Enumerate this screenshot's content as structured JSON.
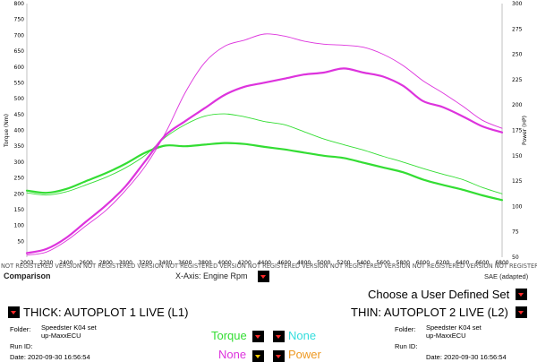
{
  "chart_data": {
    "type": "line",
    "x": [
      2003,
      2200,
      2400,
      2600,
      2800,
      3000,
      3200,
      3400,
      3600,
      3800,
      4000,
      4200,
      4400,
      4600,
      4800,
      5000,
      5200,
      5400,
      5600,
      5800,
      6000,
      6200,
      6400,
      6600,
      6800
    ],
    "x_ticks": [
      "2003",
      "2200",
      "2400",
      "2600",
      "2800",
      "3000",
      "3200",
      "3400",
      "3600",
      "3800",
      "4000",
      "4200",
      "4400",
      "4600",
      "4800",
      "5000",
      "5200",
      "5400",
      "5600",
      "5800",
      "6000",
      "6200",
      "6400",
      "6600",
      "6800"
    ],
    "xlim": [
      2003,
      6800
    ],
    "ylabel_left": "Torque (Nm)",
    "ylim_left": [
      0,
      800
    ],
    "y_ticks_left": [
      50,
      100,
      150,
      200,
      250,
      300,
      350,
      400,
      450,
      500,
      550,
      600,
      650,
      700,
      750,
      800
    ],
    "ylabel_right": "Power (HP)",
    "ylim_right": [
      50,
      300
    ],
    "y_ticks_right": [
      50,
      75,
      100,
      125,
      150,
      175,
      200,
      225,
      250,
      275,
      300
    ],
    "series": [
      {
        "axis": "left",
        "width": "thick",
        "color": "#33dd33",
        "values": [
          210,
          203,
          215,
          240,
          265,
          295,
          330,
          352,
          350,
          355,
          360,
          357,
          348,
          340,
          330,
          320,
          313,
          298,
          283,
          268,
          245,
          228,
          213,
          195,
          180
        ]
      },
      {
        "axis": "left",
        "width": "thin",
        "color": "#33dd33",
        "values": [
          203,
          196,
          206,
          228,
          252,
          282,
          322,
          378,
          418,
          445,
          452,
          443,
          428,
          418,
          396,
          373,
          355,
          338,
          318,
          300,
          280,
          262,
          245,
          220,
          200
        ]
      },
      {
        "axis": "right",
        "width": "thick",
        "color": "#dd33dd",
        "values": [
          54,
          58,
          69,
          85,
          101,
          120,
          145,
          170,
          184,
          197,
          210,
          218,
          222,
          226,
          230,
          232,
          236,
          232,
          228,
          219,
          204,
          198,
          189,
          179,
          173
        ]
      },
      {
        "axis": "right",
        "width": "thin",
        "color": "#dd33dd",
        "values": [
          52,
          55,
          66,
          81,
          96,
          116,
          140,
          172,
          212,
          242,
          258,
          264,
          270,
          268,
          263,
          260,
          259,
          257,
          250,
          239,
          224,
          212,
          199,
          185,
          177
        ]
      }
    ]
  },
  "colors": {
    "torque": "#33dd33",
    "power": "#dd33dd",
    "none_cyan": "#33dddd",
    "power_label": "#ee9922",
    "dropdown_arrow": "#ff2a2a"
  },
  "watermark": "NOT REGISTERED VERSION NOT REGISTERED VERSION NOT REGISTERED VERSION NOT REGISTERED VERSION NOT REGISTERED VERSION NOT REGISTERED VERSION NOT REGISTERED VERSION",
  "comparison_label": "Comparison",
  "xaxis_label": "X-Axis: Engine Rpm",
  "sae_label": "SAE (adapted)",
  "user_defined_label": "Choose a User Defined Set",
  "thick_label": "THICK: AUTOPLOT 1 LIVE (L1)",
  "thin_label": "THIN: AUTOPLOT 2 LIVE (L2)",
  "left_info": {
    "folder_label": "Folder:",
    "folder_line1": "Speedster K04 set",
    "folder_line2": "up-MaxxECU",
    "run_label": "Run ID:",
    "date_text": "Date: 2020-09-30 16:56:54"
  },
  "right_info": {
    "folder_label": "Folder:",
    "folder_line1": "Speedster K04 set",
    "folder_line2": "up-MaxxECU",
    "run_label": "Run ID:",
    "date_text": "Date: 2020-09-30 16:56:54"
  },
  "legend": {
    "torque": "Torque",
    "none1": "None",
    "none2": "None",
    "power": "Power"
  }
}
